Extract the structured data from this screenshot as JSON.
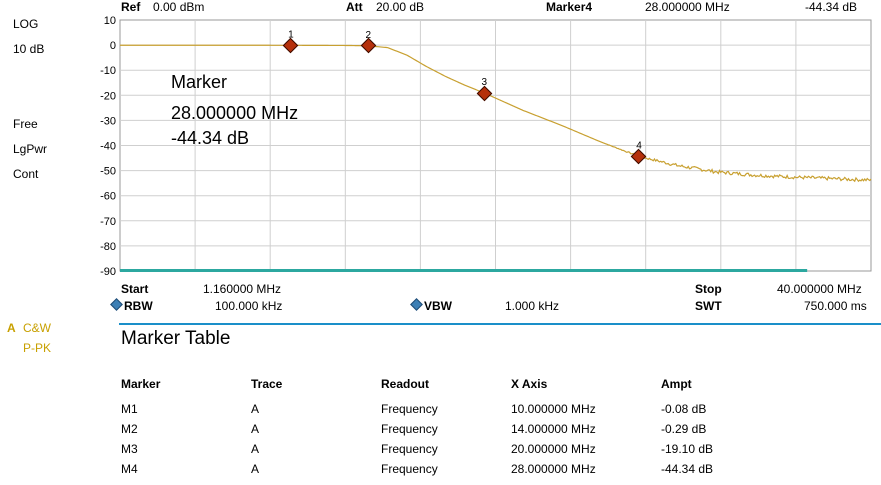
{
  "side": {
    "scale_type": "LOG",
    "scale_div": "10 dB",
    "free": "Free",
    "lgpwr": "LgPwr",
    "cont": "Cont",
    "trace_a": "A",
    "trace_det1": "C&W",
    "trace_det2": "P-PK"
  },
  "header": {
    "ref_label": "Ref",
    "ref_value": "0.00 dBm",
    "att_label": "Att",
    "att_value": "20.00 dB",
    "marker_label": "Marker4",
    "marker_freq": "28.000000 MHz",
    "marker_ampt": "-44.34 dB"
  },
  "footer": {
    "start_label": "Start",
    "start_value": "1.160000 MHz",
    "stop_label": "Stop",
    "stop_value": "40.000000 MHz",
    "rbw_label": "RBW",
    "rbw_value": "100.000 kHz",
    "vbw_label": "VBW",
    "vbw_value": "1.000 kHz",
    "swt_label": "SWT",
    "swt_value": "750.000 ms"
  },
  "annotation": {
    "title": "Marker",
    "freq": "28.000000 MHz",
    "ampt": "-44.34 dB"
  },
  "colors": {
    "trace": "#c8a030",
    "marker": "#b5300b",
    "grid": "#cfcfcf",
    "accent": "#1a8fc9",
    "trace_label": "#c8a000"
  },
  "chart_data": {
    "type": "line",
    "x_axis": "frequency",
    "x_range": [
      1.16,
      40.0
    ],
    "ylim": [
      -90,
      10
    ],
    "yticks": [
      "10",
      "0",
      "-10",
      "-20",
      "-30",
      "-40",
      "-50",
      "-60",
      "-70",
      "-80",
      "-90"
    ],
    "grid": true,
    "series": [
      {
        "x": [
          1.16,
          5,
          10,
          13,
          14,
          15,
          16,
          17,
          18,
          19,
          20,
          22,
          24,
          26,
          28,
          30,
          32,
          34,
          36,
          38,
          40
        ],
        "y": [
          -0.05,
          -0.05,
          -0.08,
          -0.15,
          -0.29,
          -1.0,
          -4.0,
          -8.5,
          -12.5,
          -16.0,
          -19.1,
          -26.0,
          -32.0,
          -38.5,
          -44.34,
          -48.0,
          -50.5,
          -51.8,
          -52.6,
          -53.2,
          -53.8
        ]
      }
    ],
    "markers": [
      {
        "label": "1",
        "x": 10.0,
        "y": -0.08
      },
      {
        "label": "2",
        "x": 14.0,
        "y": -0.29
      },
      {
        "label": "3",
        "x": 20.0,
        "y": -19.1
      },
      {
        "label": "4",
        "x": 28.0,
        "y": -44.34
      }
    ]
  },
  "marker_table": {
    "title": "Marker Table",
    "headers": [
      "Marker",
      "Trace",
      "Readout",
      "X Axis",
      "Ampt"
    ],
    "rows": [
      [
        "M1",
        "A",
        "Frequency",
        "10.000000 MHz",
        "-0.08 dB"
      ],
      [
        "M2",
        "A",
        "Frequency",
        "14.000000 MHz",
        "-0.29 dB"
      ],
      [
        "M3",
        "A",
        "Frequency",
        "20.000000 MHz",
        "-19.10 dB"
      ],
      [
        "M4",
        "A",
        "Frequency",
        "28.000000 MHz",
        "-44.34 dB"
      ]
    ]
  }
}
